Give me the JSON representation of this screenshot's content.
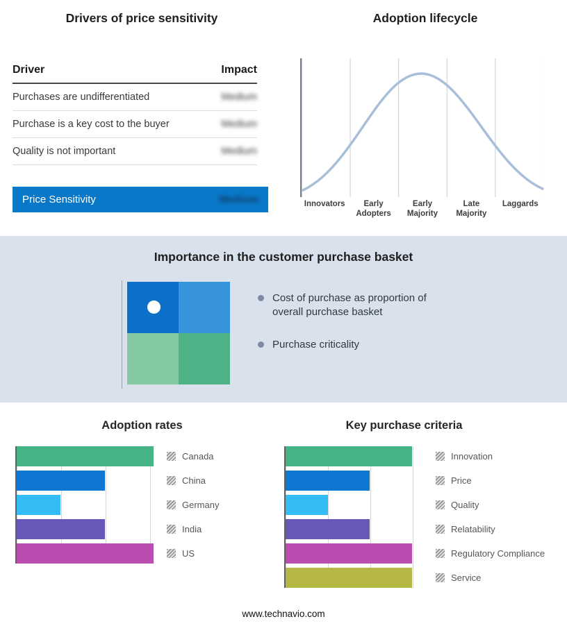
{
  "drivers": {
    "title": "Drivers of price sensitivity",
    "columns": {
      "driver": "Driver",
      "impact": "Impact"
    },
    "rows": [
      {
        "driver": "Purchases are undifferentiated",
        "impact": "Medium",
        "impact_redacted": true
      },
      {
        "driver": "Purchase is a key cost to the buyer",
        "impact": "Medium",
        "impact_redacted": true
      },
      {
        "driver": "Quality is not important",
        "impact": "Medium",
        "impact_redacted": true
      }
    ],
    "summary": {
      "label": "Price Sensitivity",
      "impact": "Medium",
      "impact_redacted": true,
      "bar_color": "#0a78c8"
    }
  },
  "basket": {
    "title": "Importance in the customer purchase basket",
    "bullets": [
      "Cost of purchase as proportion of overall purchase basket",
      "Purchase criticality"
    ],
    "quadrant_colors": [
      "#0c70c8",
      "#3794db",
      "#83c89e",
      "#4fb286"
    ],
    "band_color": "#d9e1ec"
  },
  "footer": {
    "url": "www.technavio.com"
  },
  "chart_data": [
    {
      "id": "adoption_rates",
      "type": "bar",
      "orientation": "horizontal",
      "title": "Adoption rates",
      "categories": [
        "Canada",
        "China",
        "Germany",
        "India",
        "US"
      ],
      "values": [
        3.1,
        2,
        1,
        2,
        3.1
      ],
      "colors": [
        "#45b585",
        "#0d77d2",
        "#33bdf4",
        "#6a58b8",
        "#bb4cb0"
      ],
      "xlim": [
        0,
        3.2
      ],
      "grid": true,
      "legend_position": "right",
      "axis_labels_hidden": true
    },
    {
      "id": "key_purchase_criteria",
      "type": "bar",
      "orientation": "horizontal",
      "title": "Key purchase criteria",
      "categories": [
        "Innovation",
        "Price",
        "Quality",
        "Relatability",
        "Regulatory Compliance",
        "Service"
      ],
      "values": [
        3,
        2,
        1,
        2,
        3,
        3
      ],
      "colors": [
        "#45b585",
        "#0d77d2",
        "#33bdf4",
        "#6a58b8",
        "#bb4cb0",
        "#b5b843"
      ],
      "xlim": [
        0,
        3.35
      ],
      "grid": true,
      "legend_position": "right",
      "axis_labels_hidden": true
    },
    {
      "id": "adoption_lifecycle",
      "type": "line",
      "title": "Adoption lifecycle",
      "shape": "bell-curve",
      "categories": [
        "Innovators",
        "Early Adopters",
        "Early Majority",
        "Late Majority",
        "Laggards"
      ],
      "values": [
        0.08,
        0.55,
        1.0,
        0.55,
        0.08
      ],
      "curve_color": "#a9bed9",
      "grid": true,
      "description": "Normal-distribution adoption curve peaking at Early Majority"
    }
  ]
}
